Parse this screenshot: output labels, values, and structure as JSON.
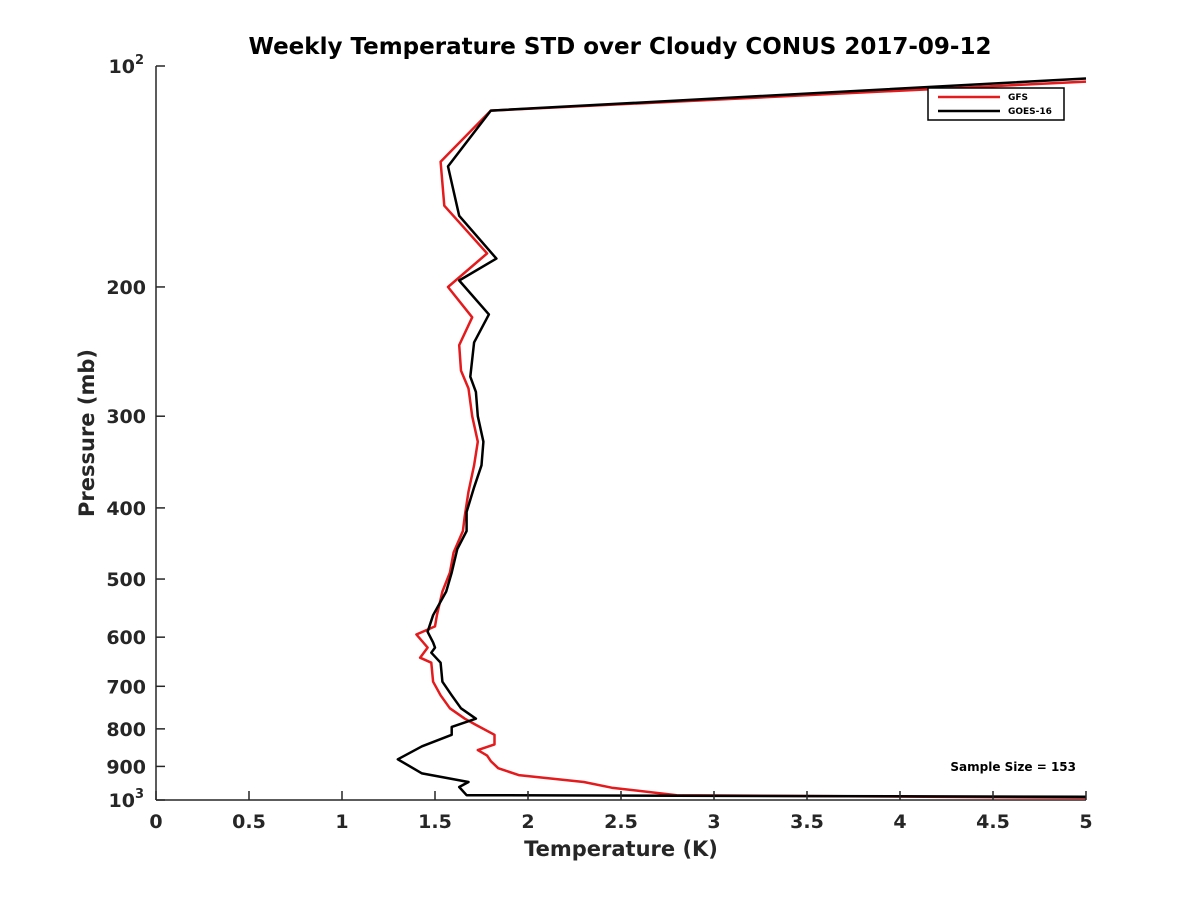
{
  "chart_data": {
    "type": "line",
    "title": "Weekly Temperature STD over Cloudy CONUS 2017-09-12",
    "xlabel": "Temperature (K)",
    "ylabel": "Pressure (mb)",
    "xlim": [
      0,
      5
    ],
    "ylim": [
      100,
      1000
    ],
    "y_scale": "log",
    "y_reversed": true,
    "x_ticks": [
      "0",
      "0.5",
      "1",
      "1.5",
      "2",
      "2.5",
      "3",
      "3.5",
      "4",
      "4.5",
      "5"
    ],
    "x_tick_values": [
      0,
      0.5,
      1,
      1.5,
      2,
      2.5,
      3,
      3.5,
      4,
      4.5,
      5
    ],
    "y_ticks": [
      {
        "value": 100,
        "base": "10",
        "exp": "2"
      },
      {
        "value": 200,
        "label": "200"
      },
      {
        "value": 300,
        "label": "300"
      },
      {
        "value": 400,
        "label": "400"
      },
      {
        "value": 500,
        "label": "500"
      },
      {
        "value": 600,
        "label": "600"
      },
      {
        "value": 700,
        "label": "700"
      },
      {
        "value": 800,
        "label": "800"
      },
      {
        "value": 900,
        "label": "900"
      },
      {
        "value": 1000,
        "base": "10",
        "exp": "3"
      }
    ],
    "grid": false,
    "legend_position": "top-right",
    "annotation": "Sample Size = 153",
    "series": [
      {
        "name": "GFS",
        "color": "#e41a1c",
        "points": [
          [
            5.0,
            105
          ],
          [
            1.8,
            115
          ],
          [
            1.53,
            135
          ],
          [
            1.55,
            155
          ],
          [
            1.78,
            180
          ],
          [
            1.57,
            200
          ],
          [
            1.7,
            220
          ],
          [
            1.63,
            240
          ],
          [
            1.64,
            260
          ],
          [
            1.68,
            275
          ],
          [
            1.7,
            300
          ],
          [
            1.73,
            325
          ],
          [
            1.71,
            350
          ],
          [
            1.68,
            380
          ],
          [
            1.66,
            410
          ],
          [
            1.65,
            430
          ],
          [
            1.6,
            460
          ],
          [
            1.58,
            490
          ],
          [
            1.54,
            520
          ],
          [
            1.51,
            560
          ],
          [
            1.5,
            580
          ],
          [
            1.4,
            595
          ],
          [
            1.46,
            620
          ],
          [
            1.42,
            640
          ],
          [
            1.48,
            650
          ],
          [
            1.49,
            690
          ],
          [
            1.53,
            720
          ],
          [
            1.58,
            750
          ],
          [
            1.66,
            775
          ],
          [
            1.72,
            790
          ],
          [
            1.82,
            815
          ],
          [
            1.82,
            840
          ],
          [
            1.73,
            855
          ],
          [
            1.78,
            870
          ],
          [
            1.8,
            885
          ],
          [
            1.84,
            905
          ],
          [
            1.95,
            925
          ],
          [
            2.3,
            945
          ],
          [
            2.45,
            962
          ],
          [
            2.8,
            985
          ],
          [
            5.0,
            993
          ]
        ]
      },
      {
        "name": "GOES-16",
        "color": "#000000",
        "points": [
          [
            5.0,
            104
          ],
          [
            1.8,
            115
          ],
          [
            1.57,
            137
          ],
          [
            1.63,
            160
          ],
          [
            1.83,
            183
          ],
          [
            1.63,
            196
          ],
          [
            1.79,
            218
          ],
          [
            1.71,
            238
          ],
          [
            1.69,
            265
          ],
          [
            1.72,
            278
          ],
          [
            1.73,
            300
          ],
          [
            1.76,
            325
          ],
          [
            1.75,
            350
          ],
          [
            1.71,
            375
          ],
          [
            1.67,
            405
          ],
          [
            1.67,
            430
          ],
          [
            1.62,
            455
          ],
          [
            1.59,
            490
          ],
          [
            1.56,
            520
          ],
          [
            1.49,
            560
          ],
          [
            1.46,
            590
          ],
          [
            1.49,
            610
          ],
          [
            1.5,
            620
          ],
          [
            1.48,
            630
          ],
          [
            1.53,
            650
          ],
          [
            1.54,
            690
          ],
          [
            1.59,
            720
          ],
          [
            1.64,
            750
          ],
          [
            1.72,
            775
          ],
          [
            1.59,
            795
          ],
          [
            1.59,
            815
          ],
          [
            1.43,
            845
          ],
          [
            1.3,
            880
          ],
          [
            1.43,
            920
          ],
          [
            1.68,
            945
          ],
          [
            1.63,
            960
          ],
          [
            1.67,
            985
          ],
          [
            5.0,
            990
          ]
        ]
      }
    ]
  }
}
